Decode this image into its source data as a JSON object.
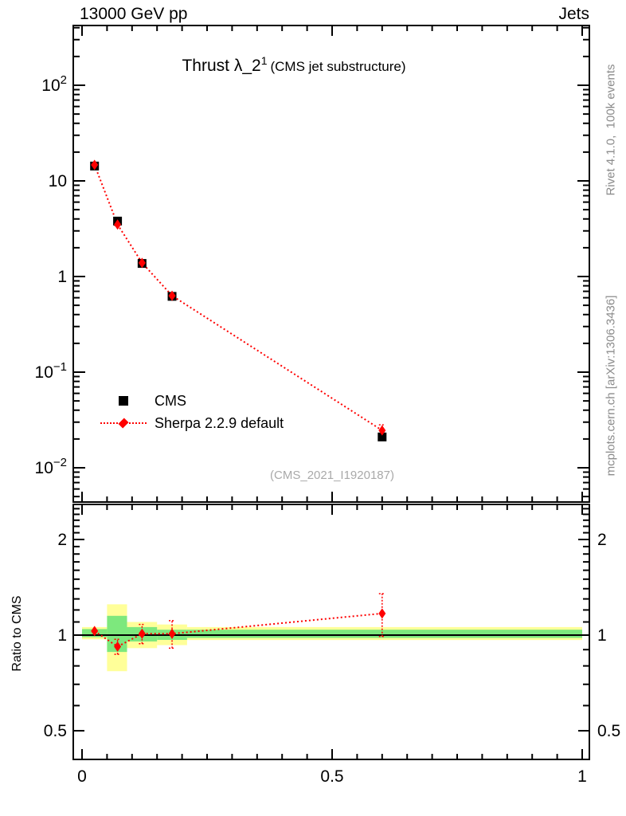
{
  "header": {
    "left": "13000 GeV pp",
    "right": "Jets"
  },
  "title": {
    "main": "Thrust λ_2",
    "superscript": "1",
    "suffix": "(CMS jet substructure)"
  },
  "watermark": "(CMS_2021_I1920187)",
  "side_notes": {
    "top": "Rivet 4.1.0,  100k events",
    "bottom": "mcplots.cern.ch [arXiv:1306.3436]"
  },
  "legend": {
    "items": [
      {
        "label": "CMS",
        "marker": "square",
        "color": "#000000"
      },
      {
        "label": "Sherpa 2.2.9 default",
        "marker": "diamond",
        "color": "#ff0000",
        "line": "dotted"
      }
    ]
  },
  "colors": {
    "cms_black": "#000000",
    "sherpa_red": "#ff0000",
    "band_yellow": "#ffff99",
    "band_green": "#7de87d",
    "frame": "#000000",
    "gray_text": "#8c8c8c",
    "watermark_gray": "#a9a9a9"
  },
  "chart_data": {
    "type": "scatter",
    "title": "Thrust λ_2^1 (CMS jet substructure)",
    "xlabel": "",
    "x_range": [
      0,
      1
    ],
    "x_minor_step": 0.05,
    "x_tick_labels": [
      {
        "value": 0,
        "text": "0"
      },
      {
        "value": 0.5,
        "text": "0.5"
      },
      {
        "value": 1,
        "text": "1"
      }
    ],
    "grid": false,
    "legend_position": "inside-left",
    "panels": [
      {
        "name": "main",
        "yscale": "log10",
        "y_range": [
          0.0044,
          420
        ],
        "y_tick_labels": [
          {
            "value": 100,
            "base": "10",
            "exp": "2"
          },
          {
            "value": 10,
            "base": "10",
            "exp": ""
          },
          {
            "value": 1,
            "base": "1",
            "exp": ""
          },
          {
            "value": 0.1,
            "base": "10",
            "exp": "−1"
          },
          {
            "value": 0.01,
            "base": "10",
            "exp": "−2"
          }
        ],
        "series": [
          {
            "name": "CMS",
            "marker": "square",
            "color": "#000000",
            "x": [
              0.025,
              0.071,
              0.12,
              0.18,
              0.6
            ],
            "y": [
              14.3,
              3.8,
              1.37,
              0.62,
              0.021
            ]
          },
          {
            "name": "Sherpa 2.2.9 default",
            "marker": "diamond",
            "color": "#ff0000",
            "linestyle": "dotted",
            "x": [
              0.025,
              0.071,
              0.12,
              0.18,
              0.6
            ],
            "y": [
              14.7,
              3.5,
              1.39,
              0.63,
              0.0246
            ],
            "yerr": [
              0.25,
              0.1,
              0.05,
              0.025,
              0.0035
            ]
          }
        ]
      },
      {
        "name": "ratio",
        "ylabel": "Ratio to CMS",
        "yscale": "log2",
        "y_range": [
          0.406,
          2.58
        ],
        "reference_line": 1,
        "y_tick_labels": [
          {
            "value": 2,
            "text": "2"
          },
          {
            "value": 1,
            "text": "1"
          },
          {
            "value": 0.5,
            "text": "0.5"
          }
        ],
        "bands": {
          "bin_edges": [
            0,
            0.05,
            0.09,
            0.15,
            0.21,
            1.0
          ],
          "yellow": [
            [
              0.97,
              1.06
            ],
            [
              0.77,
              1.25
            ],
            [
              0.91,
              1.1
            ],
            [
              0.93,
              1.08
            ],
            [
              0.965,
              1.06
            ]
          ],
          "green": [
            [
              0.985,
              1.045
            ],
            [
              0.885,
              1.15
            ],
            [
              0.955,
              1.06
            ],
            [
              0.966,
              1.04
            ],
            [
              0.98,
              1.04
            ]
          ]
        },
        "series": [
          {
            "name": "Sherpa 2.2.9 default / CMS",
            "marker": "diamond",
            "color": "#ff0000",
            "linestyle": "dotted",
            "x": [
              0.025,
              0.071,
              0.12,
              0.18,
              0.6
            ],
            "y": [
              1.03,
              0.92,
              1.01,
              1.01,
              1.17
            ],
            "yerr": [
              0.02,
              0.05,
              0.07,
              0.1,
              0.18
            ]
          }
        ]
      }
    ]
  }
}
